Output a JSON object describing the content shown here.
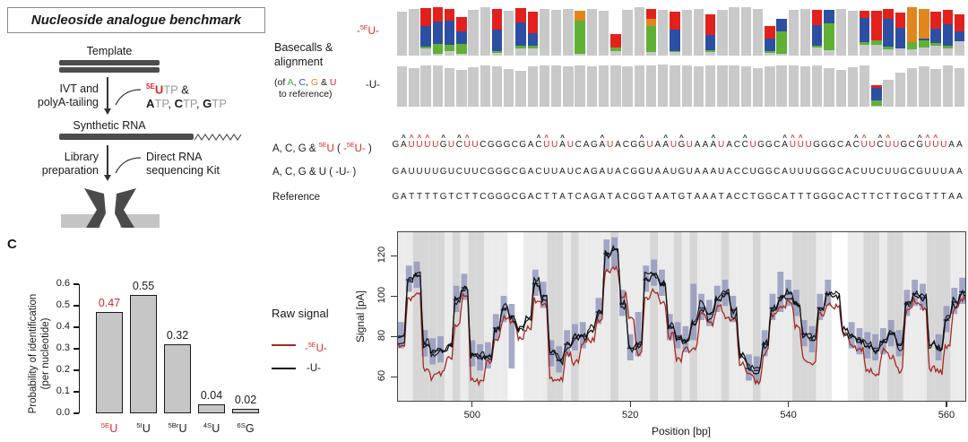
{
  "panel_label": "C",
  "diagram": {
    "title": "Nucleoside analogue benchmark",
    "template_label": "Template",
    "ivt_line1": "IVT and",
    "ivt_line2": "polyA-tailing",
    "ntp_line1": [
      {
        "t": "5E",
        "c": "sup red b"
      },
      {
        "t": "U",
        "c": "red b"
      },
      {
        "t": "TP",
        "c": "mut"
      },
      {
        "t": " &",
        "c": ""
      }
    ],
    "ntp_line2": [
      {
        "t": "A",
        "c": "b"
      },
      {
        "t": "TP",
        "c": "mut"
      },
      {
        "t": ", ",
        "c": ""
      },
      {
        "t": "C",
        "c": "b"
      },
      {
        "t": "TP",
        "c": "mut"
      },
      {
        "t": ", ",
        "c": ""
      },
      {
        "t": "G",
        "c": "b"
      },
      {
        "t": "TP",
        "c": "mut"
      }
    ],
    "synthetic_label": "Synthetic RNA",
    "library_line1": "Library",
    "library_line2": "preparation",
    "kit_line1": "Direct RNA",
    "kit_line2": "sequencing Kit"
  },
  "basecalls": {
    "heading1": "Basecalls &",
    "heading2": "alignment",
    "sub1": [
      {
        "t": "(of ",
        "c": ""
      },
      {
        "t": "A",
        "c": "grn"
      },
      {
        "t": ", ",
        "c": ""
      },
      {
        "t": "C",
        "c": "blu"
      },
      {
        "t": ", ",
        "c": ""
      },
      {
        "t": "G",
        "c": "org"
      },
      {
        "t": " & ",
        "c": ""
      },
      {
        "t": "U",
        "c": "red"
      }
    ],
    "sub2": "to reference)",
    "row1_label": [
      {
        "t": "-",
        "c": "red"
      },
      {
        "t": "5E",
        "c": "sup red"
      },
      {
        "t": "U",
        "c": "red"
      },
      {
        "t": "-",
        "c": "red"
      }
    ],
    "row2_label": "-U-"
  },
  "sequences": {
    "row1_label": [
      {
        "t": "A, C, G & ",
        "c": ""
      },
      {
        "t": "5E",
        "c": "sup red"
      },
      {
        "t": "U",
        "c": "red"
      },
      {
        "t": "  ( ",
        "c": ""
      },
      {
        "t": "-",
        "c": "red"
      },
      {
        "t": "5E",
        "c": "sup red"
      },
      {
        "t": "U",
        "c": "red"
      },
      {
        "t": "-",
        "c": "red"
      },
      {
        "t": " )",
        "c": ""
      }
    ],
    "row2_label": "A, C, G & U   ( -U- )",
    "row3_label": "Reference",
    "u_seq": "GAUUUUGUCUUCGGGCGACUUAUCAGAUACGGUAAUGUAAAUACCUGGCAUUUGGGCACUUCUUGCGUUUAA",
    "ref_seq": "GATTTTGTCTTCGGGCGACTTATCAGATACGGTAATGTAAATACCTGGCATTTGGGCACTTCTTGCGTTTAA"
  },
  "legend": {
    "title": "Raw signal",
    "item1": [
      {
        "t": "-",
        "c": "red"
      },
      {
        "t": "5E",
        "c": "sup red"
      },
      {
        "t": "U",
        "c": "red"
      },
      {
        "t": "-",
        "c": "red"
      }
    ],
    "item2": "-U-",
    "item1_color": "#a52a21",
    "item2_color": "#111111"
  },
  "chart_data": [
    {
      "type": "bar",
      "id": "basecalls-5eu",
      "row_label": "-5EU-",
      "colors": {
        "match": "#c9c9c9",
        "A": "#5fb136",
        "C": "#2c4fa3",
        "G": "#e0861c",
        "U": "#e3211c"
      },
      "bars": [
        {
          "h": 0.9
        },
        {
          "h": 0.96
        },
        {
          "h": 0.98,
          "g": 0.03,
          "b": 0.44,
          "r": 0.36
        },
        {
          "h": 1.0,
          "g": 0.2,
          "b": 0.46,
          "r": 0.3
        },
        {
          "h": 0.97,
          "g": 0.13,
          "b": 0.5,
          "r": 0.24
        },
        {
          "h": 0.8,
          "g": 0.2,
          "b": 0.26,
          "r": 0.3
        },
        {
          "h": 0.95
        },
        {
          "h": 1.0
        },
        {
          "h": 0.97,
          "g": 0.04,
          "b": 0.44,
          "r": 0.44
        },
        {
          "h": 0.93
        },
        {
          "h": 0.98,
          "g": 0.05,
          "b": 0.48,
          "r": 0.3
        },
        {
          "h": 0.9,
          "g": 0.05,
          "b": 0.26,
          "r": 0.44
        },
        {
          "h": 0.97
        },
        {
          "h": 0.94
        },
        {
          "h": 0.96
        },
        {
          "h": 0.93,
          "g": 0.7,
          "o": 0.2
        },
        {
          "h": 0.96
        },
        {
          "h": 0.93
        },
        {
          "h": 0.45,
          "g": 0.08,
          "r": 0.28
        },
        {
          "h": 0.95
        },
        {
          "h": 1.0
        },
        {
          "h": 0.96,
          "g": 0.55,
          "o": 0.14,
          "r": 0.2
        },
        {
          "h": 0.94
        },
        {
          "h": 0.9,
          "g": 0.03,
          "b": 0.44,
          "r": 0.36
        },
        {
          "h": 0.94
        },
        {
          "h": 0.96
        },
        {
          "h": 0.86,
          "g": 0.04,
          "b": 0.3,
          "r": 0.44
        },
        {
          "h": 0.94
        },
        {
          "h": 1.0
        },
        {
          "h": 1.0
        },
        {
          "h": 0.96
        },
        {
          "h": 0.62,
          "g": 0.04,
          "b": 0.26,
          "r": 0.26
        },
        {
          "h": 0.76,
          "g": 0.46,
          "b": 0.26
        },
        {
          "h": 0.94
        },
        {
          "h": 0.97
        },
        {
          "h": 0.95,
          "g": 0.05,
          "b": 0.42,
          "r": 0.32
        },
        {
          "h": 0.95,
          "g": 0.55,
          "b": 0.28
        },
        {
          "h": 0.96
        },
        {
          "h": 0.93
        },
        {
          "h": 0.92,
          "g": 0.06,
          "b": 0.5,
          "r": 0.14
        },
        {
          "h": 0.92,
          "g": 0.1,
          "r": 0.6
        },
        {
          "h": 0.96,
          "g": 0.05,
          "b": 0.58,
          "r": 0.2
        },
        {
          "h": 0.88,
          "b": 0.44,
          "r": 0.3
        },
        {
          "h": 1.0,
          "g": 0.15,
          "o": 0.72
        },
        {
          "h": 0.96,
          "g": 0.14,
          "b": 0.05,
          "o": 0.6
        },
        {
          "h": 0.9,
          "g": 0.05,
          "b": 0.3,
          "r": 0.35
        },
        {
          "h": 0.95,
          "g": 0.05,
          "b": 0.45,
          "r": 0.3
        },
        {
          "h": 0.85,
          "b": 0.2,
          "r": 0.35
        }
      ]
    },
    {
      "type": "bar",
      "id": "basecalls-u",
      "row_label": "-U-",
      "colors": {
        "match": "#c9c9c9",
        "A": "#5fb136",
        "C": "#2c4fa3",
        "G": "#e0861c",
        "U": "#e3211c"
      },
      "bars": [
        {
          "h": 0.93
        },
        {
          "h": 0.9
        },
        {
          "h": 0.95
        },
        {
          "h": 0.96
        },
        {
          "h": 0.9
        },
        {
          "h": 0.85
        },
        {
          "h": 0.92
        },
        {
          "h": 0.95
        },
        {
          "h": 0.93
        },
        {
          "h": 0.87
        },
        {
          "h": 0.84
        },
        {
          "h": 0.93
        },
        {
          "h": 0.96
        },
        {
          "h": 0.95
        },
        {
          "h": 0.94
        },
        {
          "h": 0.96
        },
        {
          "h": 0.93
        },
        {
          "h": 0.95
        },
        {
          "h": 0.96
        },
        {
          "h": 0.94
        },
        {
          "h": 0.95
        },
        {
          "h": 0.96
        },
        {
          "h": 0.97
        },
        {
          "h": 0.95
        },
        {
          "h": 0.96
        },
        {
          "h": 0.94
        },
        {
          "h": 0.95
        },
        {
          "h": 0.96
        },
        {
          "h": 0.95
        },
        {
          "h": 0.93
        },
        {
          "h": 0.9
        },
        {
          "h": 0.93
        },
        {
          "h": 0.95
        },
        {
          "h": 0.96
        },
        {
          "h": 0.94
        },
        {
          "h": 0.95
        },
        {
          "h": 0.9
        },
        {
          "h": 0.86
        },
        {
          "h": 0.92
        },
        {
          "h": 0.95
        },
        {
          "h": 0.5,
          "g": 0.12,
          "b": 0.3,
          "r": 0.06
        },
        {
          "h": 0.62
        },
        {
          "h": 0.8
        },
        {
          "h": 0.9
        },
        {
          "h": 0.93
        },
        {
          "h": 0.88
        },
        {
          "h": 0.95
        },
        {
          "h": 0.9
        }
      ]
    },
    {
      "type": "bar",
      "id": "identification-probability",
      "categories": [
        "5EU",
        "5IU",
        "5BrU",
        "4SU",
        "6SG"
      ],
      "cat_segs": [
        [
          {
            "t": "5E",
            "c": "sup red"
          },
          {
            "t": "U",
            "c": "red"
          }
        ],
        [
          {
            "t": "5I",
            "c": "sup"
          },
          {
            "t": "U",
            "c": ""
          }
        ],
        [
          {
            "t": "5Br",
            "c": "sup"
          },
          {
            "t": "U",
            "c": ""
          }
        ],
        [
          {
            "t": "4S",
            "c": "sup"
          },
          {
            "t": "U",
            "c": ""
          }
        ],
        [
          {
            "t": "6S",
            "c": "sup"
          },
          {
            "t": "G",
            "c": ""
          }
        ]
      ],
      "values": [
        0.47,
        0.55,
        0.32,
        0.04,
        0.02
      ],
      "value_labels": [
        "0.47",
        "0.55",
        "0.32",
        "0.04",
        "0.02"
      ],
      "highlight_index": 0,
      "ylabel_line1": "Probability of identification",
      "ylabel_line2": "(per nucleotide)",
      "ylim": [
        0,
        0.6
      ],
      "yticks": [
        0.0,
        0.1,
        0.2,
        0.3,
        0.4,
        0.5,
        0.6
      ],
      "bar_color": "#c6c6c6"
    },
    {
      "type": "line",
      "id": "raw-signal",
      "xlabel": "Position [bp]",
      "ylabel": "Signal [pA]",
      "xlim": [
        490.5,
        562.5
      ],
      "ylim": [
        47,
        132
      ],
      "xticks": [
        500,
        520,
        540,
        560
      ],
      "yticks": [
        60,
        80,
        100,
        120
      ],
      "series": [
        {
          "name": "-5EU-",
          "color": "#a52a21"
        },
        {
          "name": "-U-",
          "color": "#111111"
        }
      ],
      "start_pos": 491,
      "levels": [
        80,
        108,
        110,
        76,
        72,
        73,
        75,
        98,
        104,
        71,
        69,
        70,
        84,
        93,
        90,
        84,
        88,
        106,
        100,
        71,
        68,
        76,
        79,
        80,
        83,
        92,
        121,
        123,
        96,
        74,
        76,
        108,
        111,
        106,
        84,
        80,
        78,
        86,
        94,
        91,
        98,
        101,
        93,
        70,
        64,
        63,
        76,
        94,
        99,
        101,
        96,
        81,
        78,
        94,
        101,
        99,
        84,
        80,
        77,
        75,
        74,
        77,
        81,
        76,
        96,
        101,
        99,
        76,
        74,
        88,
        97,
        102
      ],
      "box_overrides": {
        "505": [
          64,
          96
        ],
        "517": [
          112,
          128
        ],
        "518": [
          114,
          129
        ],
        "521": [
          70,
          92
        ],
        "528": [
          78,
          106
        ],
        "539": [
          92,
          112
        ]
      },
      "box_skip": [
        497,
        506,
        507,
        515,
        534,
        546,
        547,
        558
      ],
      "stripe_gaps": [
        505,
        506,
        546,
        547
      ],
      "red_overrides": {
        "519": 100,
        "520": 88
      },
      "stripe_light": "#ebebeb",
      "stripe_dark": "#d6d6d6",
      "box_color": "#8d93bb",
      "median_color": "#2b3660"
    }
  ]
}
